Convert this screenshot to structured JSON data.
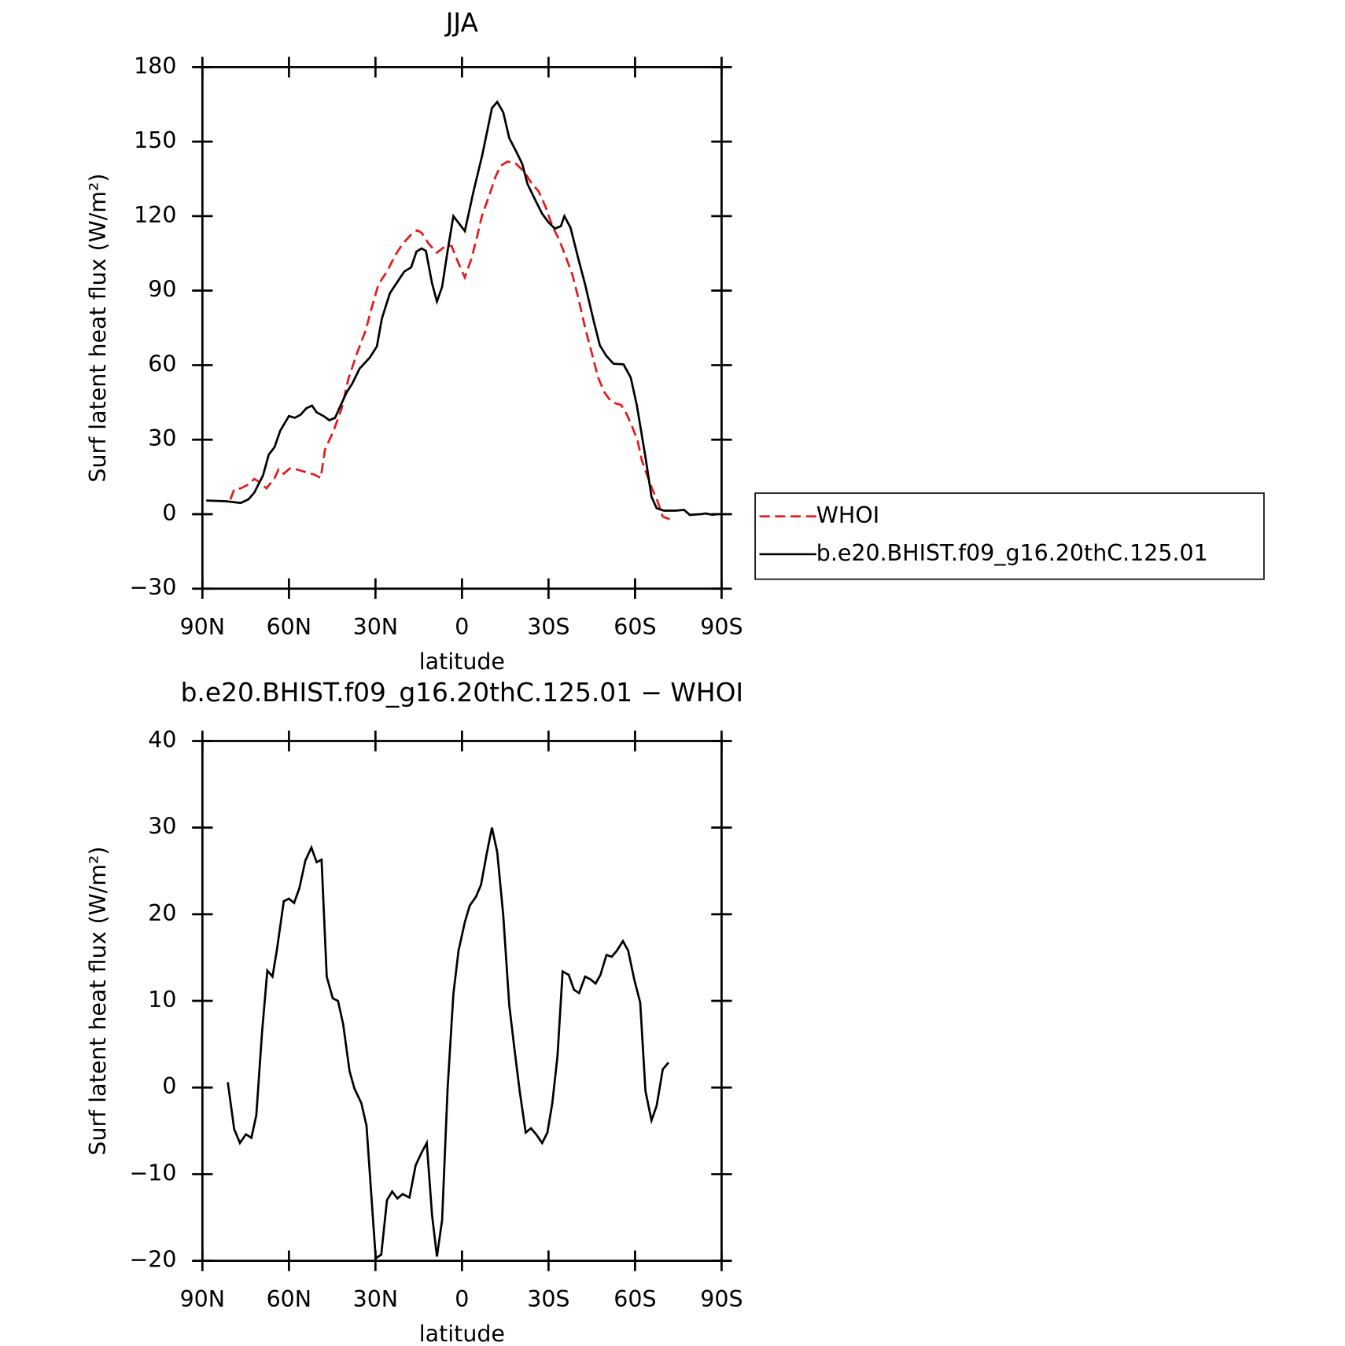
{
  "chart_data": [
    {
      "type": "line",
      "title": "JJA",
      "xlabel": "latitude",
      "ylabel": "Surf latent heat flux (W/m²)",
      "xlim": [
        90,
        -90
      ],
      "xticks": [
        {
          "value": 90,
          "label": "90N"
        },
        {
          "value": 60,
          "label": "60N"
        },
        {
          "value": 30,
          "label": "30N"
        },
        0,
        {
          "value": -30,
          "label": "30S"
        },
        {
          "value": -60,
          "label": "60S"
        },
        {
          "value": -90,
          "label": "90S"
        }
      ],
      "ylim": [
        -30,
        180
      ],
      "yticks": [
        {
          "value": -30,
          "label": "−30"
        },
        0,
        30,
        60,
        90,
        120,
        150,
        180
      ],
      "legend": "right",
      "series": [
        {
          "name": "WHOI",
          "color": "#e41a1c",
          "dashed": true,
          "x": [
            80.3,
            79,
            76.7,
            74,
            72,
            70,
            67.8,
            65,
            63.6,
            61.8,
            59.7,
            57.3,
            54.3,
            51.3,
            49,
            47.5,
            44.5,
            41.8,
            39.4,
            36.4,
            33.4,
            31.3,
            29,
            26,
            23,
            20.6,
            17.6,
            15.5,
            14,
            11.6,
            8.7,
            5.7,
            3.6,
            1.2,
            -1,
            -3.3,
            -5.4,
            -6.9,
            -9.3,
            -11.6,
            -13.4,
            -15.8,
            -18.8,
            -21.8,
            -24.2,
            -26.6,
            -29,
            -31.3,
            -33.7,
            -36,
            -38.2,
            -40.3,
            -42.7,
            -45,
            -47.2,
            -49.3,
            -51,
            -53,
            -55.2,
            -57,
            -59,
            -60.9,
            -62.4,
            -64.2,
            -66,
            -67.8,
            -69.6,
            -72
          ],
          "values": [
            5.9,
            10,
            10.4,
            12,
            14.2,
            12.8,
            10.4,
            14.5,
            18,
            16.3,
            18.4,
            18,
            17,
            16,
            14.6,
            26,
            33.6,
            42.3,
            54.4,
            64.8,
            74,
            83,
            92.5,
            97.7,
            104.6,
            108.8,
            112.6,
            114.3,
            113.3,
            109,
            105.3,
            108,
            108,
            101,
            95.3,
            103,
            112.6,
            120,
            127.9,
            135.8,
            140.3,
            142,
            141,
            137.6,
            133,
            130,
            123.7,
            116,
            110.5,
            103.6,
            96.7,
            87.3,
            75,
            64.8,
            55,
            49.2,
            46.4,
            44.7,
            44,
            40.5,
            35.3,
            29.5,
            21.5,
            15.6,
            10,
            5.2,
            -1,
            -2
          ]
        },
        {
          "name": "b.e20.BHIST.f09_g16.20thC.125.01",
          "color": "#000000",
          "dashed": false,
          "x": [
            88.7,
            82,
            76.7,
            74,
            72,
            69,
            67,
            65,
            63,
            60,
            58,
            56,
            54,
            52,
            50.4,
            48,
            46,
            44,
            42,
            40,
            38,
            35.5,
            32,
            29.5,
            27.8,
            25,
            23,
            20,
            17.6,
            15.8,
            14,
            12.5,
            10.4,
            8.7,
            6.9,
            5,
            3,
            -1,
            -4,
            -7,
            -10.4,
            -12.2,
            -14.3,
            -16.4,
            -18.8,
            -20.9,
            -22.7,
            -25.4,
            -27.8,
            -30,
            -32.2,
            -34.3,
            -35.5,
            -37.6,
            -40.3,
            -42.7,
            -45.7,
            -47.8,
            -50,
            -52.5,
            -56,
            -58.5,
            -60.6,
            -63.6,
            -65.7,
            -67.5,
            -70,
            -74,
            -77,
            -79,
            -83,
            -84.5,
            -86.9,
            -88.4
          ],
          "values": [
            5.5,
            5.2,
            4.5,
            6,
            8.7,
            15.6,
            24,
            27,
            33.6,
            39.5,
            38.8,
            40,
            42.6,
            43.7,
            41,
            39.5,
            37.8,
            38.8,
            44,
            49,
            52.7,
            58.6,
            63,
            67.6,
            78.7,
            89,
            92.5,
            97.7,
            99.4,
            105.7,
            107,
            106,
            93,
            85.6,
            91.5,
            106,
            120,
            114,
            130,
            144.5,
            163.5,
            166,
            161.8,
            151.4,
            146,
            141,
            133,
            126.5,
            121,
            117.5,
            115,
            116,
            120,
            115.4,
            103,
            92.5,
            77.6,
            68,
            63.8,
            60.6,
            60.3,
            55,
            44,
            23,
            7,
            2.4,
            1.4,
            1.4,
            1.7,
            -0.3,
            0,
            0.3,
            -0.3,
            0
          ]
        }
      ]
    },
    {
      "type": "line",
      "title": "b.e20.BHIST.f09_g16.20thC.125.01 − WHOI",
      "xlabel": "latitude",
      "ylabel": "Surf latent heat flux (W/m²)",
      "xlim": [
        90,
        -90
      ],
      "xticks": [
        {
          "value": 90,
          "label": "90N"
        },
        {
          "value": 60,
          "label": "60N"
        },
        {
          "value": 30,
          "label": "30N"
        },
        0,
        {
          "value": -30,
          "label": "30S"
        },
        {
          "value": -60,
          "label": "60S"
        },
        {
          "value": -90,
          "label": "90S"
        }
      ],
      "ylim": [
        -20,
        40
      ],
      "yticks": [
        {
          "value": -20,
          "label": "−20"
        },
        {
          "value": -10,
          "label": "−10"
        },
        0,
        10,
        20,
        30,
        40
      ],
      "series": [
        {
          "color": "#000000",
          "dashed": false,
          "x": [
            81.2,
            79,
            77,
            74.9,
            73,
            71.3,
            69.3,
            67.5,
            65.7,
            64.2,
            61.8,
            60,
            58.2,
            56.4,
            54.3,
            52.2,
            50.4,
            48.7,
            46.9,
            44.8,
            43,
            41.2,
            39,
            37.3,
            34.9,
            33.1,
            31.3,
            29.9,
            28,
            26,
            24.2,
            22.4,
            20.6,
            18.2,
            16.1,
            14,
            12.2,
            10.4,
            8.7,
            6.9,
            5,
            3,
            1.2,
            -1,
            -2.7,
            -4.8,
            -6.6,
            -8.7,
            -10.4,
            -12.2,
            -14.3,
            -16.4,
            -18.2,
            -20,
            -22.1,
            -23.9,
            -25.7,
            -27.8,
            -29.6,
            -31.3,
            -33.1,
            -34.9,
            -37,
            -38.8,
            -40.6,
            -42.7,
            -44.5,
            -46.3,
            -48,
            -50.1,
            -51.9,
            -53.7,
            -55.8,
            -57.6,
            -59.7,
            -61.8,
            -63.6,
            -65.7,
            -67.5,
            -69.6,
            -71.6
          ],
          "values": [
            0.6,
            -4.8,
            -6.4,
            -5.4,
            -5.8,
            -3.2,
            6.4,
            13.5,
            12.8,
            15.8,
            21.5,
            21.8,
            21.3,
            23,
            26.2,
            27.7,
            26,
            26.3,
            12.8,
            10.3,
            10,
            7.3,
            1.9,
            -0.1,
            -1.8,
            -4.4,
            -13,
            -19.7,
            -19.3,
            -13,
            -12,
            -12.8,
            -12.3,
            -12.7,
            -9,
            -7.5,
            -6.4,
            -14.7,
            -19.5,
            -15.3,
            -0.1,
            10.8,
            15.8,
            19.1,
            21,
            22,
            23.4,
            27.2,
            30,
            27.2,
            19.9,
            9.5,
            4.4,
            -0.4,
            -5.2,
            -4.7,
            -5.4,
            -6.4,
            -5.2,
            -1.8,
            3.6,
            13.4,
            13,
            11.3,
            10.9,
            12.8,
            12.5,
            12,
            13,
            15.3,
            15.1,
            15.8,
            16.9,
            15.8,
            12.5,
            9.8,
            -0.4,
            -3.8,
            -2.1,
            2.1,
            2.9
          ]
        }
      ]
    }
  ]
}
